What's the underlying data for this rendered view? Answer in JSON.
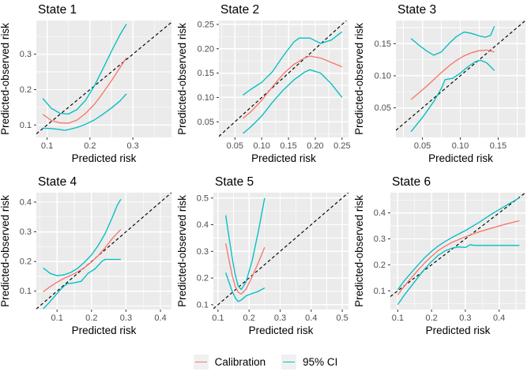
{
  "styles": {
    "panel_bg": "#EBEBEB",
    "grid_color": "#FFFFFF",
    "tick_mark_color": "#333333",
    "tick_label_color": "#4D4D4D",
    "text_color": "#000000",
    "calibration_color": "#F8766D",
    "ci_color": "#00BFC4",
    "reference_color": "#000000"
  },
  "legend": {
    "position": "bottom",
    "items": [
      {
        "label": "Calibration",
        "color": "#F8766D"
      },
      {
        "label": "95% CI",
        "color": "#00BFC4"
      }
    ]
  },
  "chart_data": [
    {
      "type": "line",
      "title": "State 1",
      "xlabel": "Predicted risk",
      "ylabel": "Predicted-observed risk",
      "xlim": [
        0.075,
        0.39
      ],
      "ylim": [
        0.065,
        0.395
      ],
      "xticks": [
        0.1,
        0.2,
        0.3
      ],
      "xtick_labels": [
        "0.1",
        "0.2",
        "0.3"
      ],
      "yticks": [
        0.1,
        0.2,
        0.3
      ],
      "ytick_labels": [
        "0.1",
        "0.2",
        "0.3"
      ],
      "grid": true,
      "reference_line": "y=x dashed",
      "series": [
        {
          "name": "95% CI lower",
          "color": "#00BFC4",
          "x": [
            0.09,
            0.11,
            0.13,
            0.14,
            0.15,
            0.17,
            0.19,
            0.21,
            0.23,
            0.25,
            0.27,
            0.285
          ],
          "y": [
            0.091,
            0.09,
            0.087,
            0.085,
            0.087,
            0.093,
            0.102,
            0.114,
            0.13,
            0.148,
            0.168,
            0.188
          ]
        },
        {
          "name": "95% CI upper",
          "color": "#00BFC4",
          "x": [
            0.09,
            0.11,
            0.13,
            0.15,
            0.17,
            0.19,
            0.21,
            0.23,
            0.25,
            0.27,
            0.285
          ],
          "y": [
            0.175,
            0.147,
            0.133,
            0.131,
            0.144,
            0.17,
            0.21,
            0.258,
            0.308,
            0.355,
            0.385
          ]
        },
        {
          "name": "Calibration",
          "color": "#F8766D",
          "x": [
            0.09,
            0.11,
            0.13,
            0.15,
            0.17,
            0.19,
            0.21,
            0.23,
            0.25,
            0.27,
            0.285
          ],
          "y": [
            0.13,
            0.113,
            0.106,
            0.105,
            0.114,
            0.133,
            0.158,
            0.19,
            0.225,
            0.262,
            0.29
          ]
        }
      ]
    },
    {
      "type": "line",
      "title": "State 2",
      "xlabel": "Predicted risk",
      "ylabel": "Predicted-observed risk",
      "xlim": [
        0.02,
        0.262
      ],
      "ylim": [
        0.018,
        0.258
      ],
      "xticks": [
        0.05,
        0.1,
        0.15,
        0.2,
        0.25
      ],
      "xtick_labels": [
        "0.05",
        "0.10",
        "0.15",
        "0.20",
        "0.25"
      ],
      "yticks": [
        0.05,
        0.1,
        0.15,
        0.2,
        0.25
      ],
      "ytick_labels": [
        "0.05",
        "0.10",
        "0.15",
        "0.20",
        "0.25"
      ],
      "grid": true,
      "reference_line": "y=x dashed",
      "series": [
        {
          "name": "95% CI lower",
          "color": "#00BFC4",
          "x": [
            0.065,
            0.08,
            0.1,
            0.12,
            0.14,
            0.16,
            0.18,
            0.19,
            0.21,
            0.23,
            0.25
          ],
          "y": [
            0.026,
            0.04,
            0.062,
            0.09,
            0.115,
            0.136,
            0.152,
            0.157,
            0.15,
            0.128,
            0.1
          ]
        },
        {
          "name": "95% CI upper",
          "color": "#00BFC4",
          "x": [
            0.065,
            0.08,
            0.1,
            0.12,
            0.14,
            0.16,
            0.17,
            0.19,
            0.21,
            0.23,
            0.25
          ],
          "y": [
            0.105,
            0.117,
            0.131,
            0.153,
            0.185,
            0.214,
            0.222,
            0.222,
            0.211,
            0.218,
            0.235
          ]
        },
        {
          "name": "Calibration",
          "color": "#F8766D",
          "x": [
            0.065,
            0.08,
            0.1,
            0.12,
            0.14,
            0.16,
            0.18,
            0.19,
            0.21,
            0.23,
            0.25
          ],
          "y": [
            0.057,
            0.071,
            0.094,
            0.122,
            0.148,
            0.168,
            0.181,
            0.185,
            0.181,
            0.172,
            0.163
          ]
        }
      ]
    },
    {
      "type": "line",
      "title": "State 3",
      "xlabel": "Predicted risk",
      "ylabel": "Predicted-observed risk",
      "xlim": [
        0.015,
        0.186
      ],
      "ylim": [
        0.004,
        0.186
      ],
      "xticks": [
        0.05,
        0.1,
        0.15
      ],
      "xtick_labels": [
        "0.05",
        "0.10",
        "0.15"
      ],
      "yticks": [
        0.05,
        0.1,
        0.15
      ],
      "ytick_labels": [
        "0.05",
        "0.10",
        "0.15"
      ],
      "grid": true,
      "reference_line": "y=x dashed",
      "series": [
        {
          "name": "95% CI lower",
          "color": "#00BFC4",
          "x": [
            0.035,
            0.05,
            0.065,
            0.075,
            0.08,
            0.09,
            0.1,
            0.11,
            0.12,
            0.127,
            0.135,
            0.145
          ],
          "y": [
            0.013,
            0.035,
            0.06,
            0.08,
            0.094,
            0.096,
            0.104,
            0.114,
            0.122,
            0.124,
            0.12,
            0.108
          ]
        },
        {
          "name": "95% CI upper",
          "color": "#00BFC4",
          "x": [
            0.035,
            0.045,
            0.055,
            0.065,
            0.075,
            0.085,
            0.095,
            0.105,
            0.115,
            0.125,
            0.133,
            0.14,
            0.145
          ],
          "y": [
            0.158,
            0.148,
            0.139,
            0.132,
            0.137,
            0.15,
            0.161,
            0.168,
            0.166,
            0.162,
            0.16,
            0.163,
            0.177
          ]
        },
        {
          "name": "Calibration",
          "color": "#F8766D",
          "x": [
            0.035,
            0.045,
            0.055,
            0.065,
            0.075,
            0.085,
            0.095,
            0.105,
            0.115,
            0.125,
            0.135,
            0.145
          ],
          "y": [
            0.063,
            0.073,
            0.083,
            0.094,
            0.105,
            0.115,
            0.124,
            0.131,
            0.136,
            0.139,
            0.14,
            0.137
          ]
        }
      ]
    },
    {
      "type": "line",
      "title": "State 4",
      "xlabel": "Predicted risk",
      "ylabel": "Predicted-observed risk",
      "xlim": [
        0.04,
        0.432
      ],
      "ylim": [
        0.038,
        0.432
      ],
      "xticks": [
        0.1,
        0.2,
        0.3,
        0.4
      ],
      "xtick_labels": [
        "0.1",
        "0.2",
        "0.3",
        "0.4"
      ],
      "yticks": [
        0.1,
        0.2,
        0.3,
        0.4
      ],
      "ytick_labels": [
        "0.1",
        "0.2",
        "0.3",
        "0.4"
      ],
      "grid": true,
      "reference_line": "y=x dashed",
      "series": [
        {
          "name": "95% CI lower",
          "color": "#00BFC4",
          "x": [
            0.06,
            0.08,
            0.1,
            0.12,
            0.13,
            0.15,
            0.17,
            0.19,
            0.21,
            0.23,
            0.24,
            0.26,
            0.285
          ],
          "y": [
            0.04,
            0.065,
            0.092,
            0.117,
            0.125,
            0.128,
            0.133,
            0.16,
            0.175,
            0.2,
            0.207,
            0.207,
            0.207
          ]
        },
        {
          "name": "95% CI upper",
          "color": "#00BFC4",
          "x": [
            0.06,
            0.08,
            0.1,
            0.12,
            0.14,
            0.16,
            0.18,
            0.2,
            0.22,
            0.24,
            0.26,
            0.275,
            0.285
          ],
          "y": [
            0.178,
            0.16,
            0.152,
            0.155,
            0.163,
            0.177,
            0.198,
            0.222,
            0.255,
            0.295,
            0.348,
            0.39,
            0.41
          ]
        },
        {
          "name": "Calibration",
          "color": "#F8766D",
          "x": [
            0.06,
            0.08,
            0.1,
            0.12,
            0.14,
            0.16,
            0.18,
            0.2,
            0.22,
            0.24,
            0.26,
            0.285
          ],
          "y": [
            0.098,
            0.115,
            0.13,
            0.143,
            0.153,
            0.165,
            0.18,
            0.198,
            0.22,
            0.247,
            0.277,
            0.308
          ]
        }
      ]
    },
    {
      "type": "line",
      "title": "State 5",
      "xlabel": "Predicted risk",
      "ylabel": "Predicted-observed risk",
      "xlim": [
        0.085,
        0.52
      ],
      "ylim": [
        0.082,
        0.52
      ],
      "xticks": [
        0.1,
        0.2,
        0.3,
        0.4,
        0.5
      ],
      "xtick_labels": [
        "0.1",
        "0.2",
        "0.3",
        "0.4",
        "0.5"
      ],
      "yticks": [
        0.1,
        0.2,
        0.3,
        0.4,
        0.5
      ],
      "ytick_labels": [
        "0.1",
        "0.2",
        "0.3",
        "0.4",
        "0.5"
      ],
      "grid": true,
      "reference_line": "y=x dashed",
      "series": [
        {
          "name": "95% CI lower",
          "color": "#00BFC4",
          "x": [
            0.125,
            0.135,
            0.145,
            0.155,
            0.165,
            0.175,
            0.19,
            0.21,
            0.23,
            0.25
          ],
          "y": [
            0.22,
            0.185,
            0.152,
            0.127,
            0.112,
            0.118,
            0.133,
            0.142,
            0.15,
            0.163
          ]
        },
        {
          "name": "95% CI upper",
          "color": "#00BFC4",
          "x": [
            0.125,
            0.135,
            0.145,
            0.155,
            0.165,
            0.175,
            0.19,
            0.21,
            0.23,
            0.25
          ],
          "y": [
            0.435,
            0.355,
            0.28,
            0.215,
            0.17,
            0.157,
            0.185,
            0.265,
            0.375,
            0.5
          ]
        },
        {
          "name": "Calibration",
          "color": "#F8766D",
          "x": [
            0.125,
            0.135,
            0.145,
            0.155,
            0.165,
            0.175,
            0.19,
            0.21,
            0.23,
            0.25
          ],
          "y": [
            0.33,
            0.27,
            0.213,
            0.17,
            0.147,
            0.14,
            0.158,
            0.205,
            0.258,
            0.315
          ]
        }
      ]
    },
    {
      "type": "line",
      "title": "State 6",
      "xlabel": "Predicted risk",
      "ylabel": "Predicted-observed risk",
      "xlim": [
        0.078,
        0.478
      ],
      "ylim": [
        0.028,
        0.478
      ],
      "xticks": [
        0.1,
        0.2,
        0.3,
        0.4
      ],
      "xtick_labels": [
        "0.1",
        "0.2",
        "0.3",
        "0.4"
      ],
      "yticks": [
        0.1,
        0.2,
        0.3,
        0.4
      ],
      "ytick_labels": [
        "0.1",
        "0.2",
        "0.3",
        "0.4"
      ],
      "grid": true,
      "reference_line": "y=x dashed",
      "series": [
        {
          "name": "95% CI lower",
          "color": "#00BFC4",
          "x": [
            0.1,
            0.12,
            0.14,
            0.16,
            0.18,
            0.2,
            0.22,
            0.24,
            0.26,
            0.28,
            0.3,
            0.315,
            0.325,
            0.46
          ],
          "y": [
            0.047,
            0.085,
            0.118,
            0.152,
            0.185,
            0.213,
            0.237,
            0.254,
            0.264,
            0.269,
            0.267,
            0.278,
            0.275,
            0.275
          ]
        },
        {
          "name": "95% CI upper",
          "color": "#00BFC4",
          "x": [
            0.1,
            0.12,
            0.14,
            0.16,
            0.18,
            0.2,
            0.22,
            0.24,
            0.26,
            0.3,
            0.34,
            0.38,
            0.42,
            0.46
          ],
          "y": [
            0.105,
            0.14,
            0.17,
            0.2,
            0.228,
            0.252,
            0.273,
            0.29,
            0.305,
            0.332,
            0.363,
            0.397,
            0.428,
            0.458
          ]
        },
        {
          "name": "Calibration",
          "color": "#F8766D",
          "x": [
            0.1,
            0.12,
            0.14,
            0.16,
            0.18,
            0.2,
            0.22,
            0.24,
            0.26,
            0.3,
            0.34,
            0.38,
            0.42,
            0.46
          ],
          "y": [
            0.085,
            0.119,
            0.15,
            0.18,
            0.208,
            0.233,
            0.255,
            0.272,
            0.286,
            0.308,
            0.327,
            0.342,
            0.357,
            0.37
          ]
        }
      ]
    }
  ]
}
